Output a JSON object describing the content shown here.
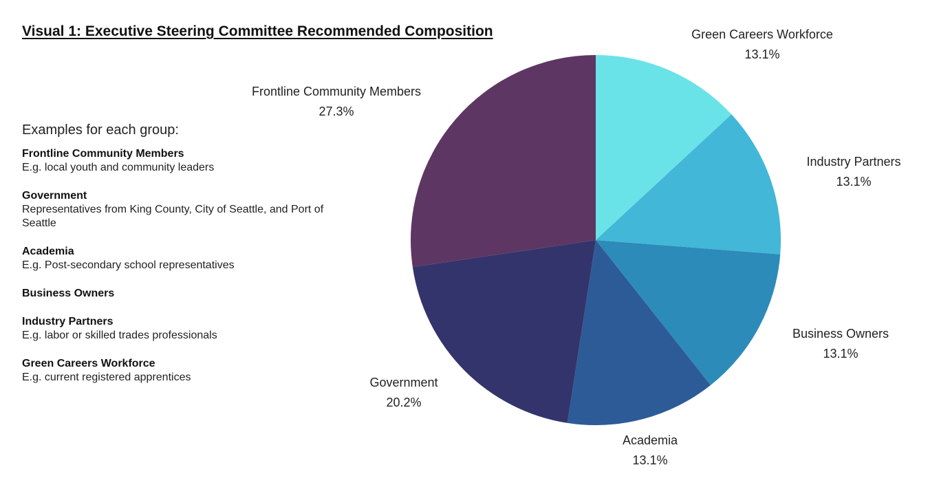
{
  "title": "Visual 1: Executive Steering Committee Recommended Composition",
  "examples_heading": "Examples for each group:",
  "groups": [
    {
      "name": "Frontline Community Members",
      "description": "E.g. local youth and community leaders"
    },
    {
      "name": "Government",
      "description": "Representatives from King County, City of Seattle, and Port of Seattle"
    },
    {
      "name": "Academia",
      "description": "E.g. Post-secondary school representatives"
    },
    {
      "name": "Business Owners",
      "description": ""
    },
    {
      "name": "Industry Partners",
      "description": "E.g. labor or skilled trades professionals"
    },
    {
      "name": "Green Careers Workforce",
      "description": "E.g. current registered apprentices"
    }
  ],
  "chart_data": {
    "type": "pie",
    "title": "Visual 1: Executive Steering Committee Recommended Composition",
    "slices": [
      {
        "label": "Green Careers Workforce",
        "value": 13.1,
        "display": "13.1%",
        "color": "#6ae3e8"
      },
      {
        "label": "Industry Partners",
        "value": 13.1,
        "display": "13.1%",
        "color": "#42b7d7"
      },
      {
        "label": "Business Owners",
        "value": 13.1,
        "display": "13.1%",
        "color": "#2d8bb9"
      },
      {
        "label": "Academia",
        "value": 13.1,
        "display": "13.1%",
        "color": "#2d5b97"
      },
      {
        "label": "Government",
        "value": 20.2,
        "display": "20.2%",
        "color": "#33346c"
      },
      {
        "label": "Frontline Community Members",
        "value": 27.3,
        "display": "27.3%",
        "color": "#5e3663"
      }
    ],
    "start_angle": "12 o'clock",
    "direction": "clockwise",
    "legend": "none"
  }
}
